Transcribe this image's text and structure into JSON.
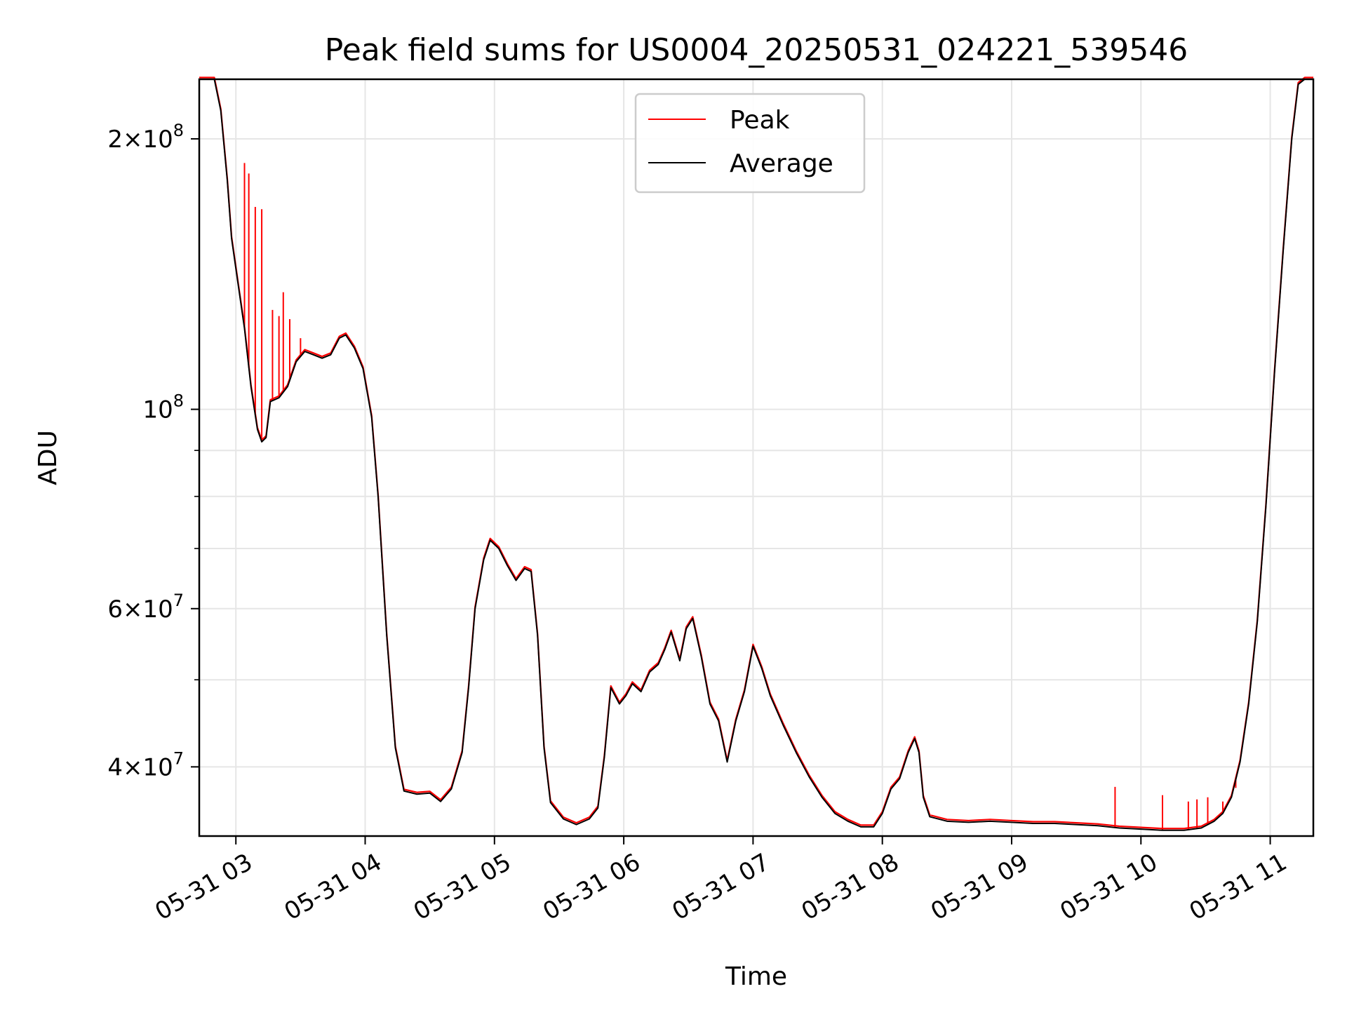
{
  "chart_data": {
    "type": "line",
    "title": "Peak field sums for US0004_20250531_024221_539546",
    "xlabel": "Time",
    "ylabel": "ADU",
    "y_scale": "log",
    "x_range": [
      "2025-05-31 02:43",
      "2025-05-31 11:20"
    ],
    "ylim": [
      33500000,
      233000000
    ],
    "grid": true,
    "legend_position": "upper center",
    "x_ticks": [
      {
        "t": "2025-05-31 03:00",
        "label": "05-31 03"
      },
      {
        "t": "2025-05-31 04:00",
        "label": "05-31 04"
      },
      {
        "t": "2025-05-31 05:00",
        "label": "05-31 05"
      },
      {
        "t": "2025-05-31 06:00",
        "label": "05-31 06"
      },
      {
        "t": "2025-05-31 07:00",
        "label": "05-31 07"
      },
      {
        "t": "2025-05-31 08:00",
        "label": "05-31 08"
      },
      {
        "t": "2025-05-31 09:00",
        "label": "05-31 09"
      },
      {
        "t": "2025-05-31 10:00",
        "label": "05-31 10"
      },
      {
        "t": "2025-05-31 11:00",
        "label": "05-31 11"
      }
    ],
    "y_major_ticks": [
      {
        "value": 40000000,
        "mant": "4",
        "exp": "7"
      },
      {
        "value": 60000000,
        "mant": "6",
        "exp": "7"
      },
      {
        "value": 100000000,
        "mant": "",
        "exp": "8"
      },
      {
        "value": 200000000,
        "mant": "2",
        "exp": "8"
      }
    ],
    "y_minor_ticks": [
      50000000,
      70000000,
      80000000,
      90000000
    ],
    "series": [
      {
        "name": "Peak",
        "color": "#ff0000",
        "spikes": [
          {
            "t": "2025-05-31 03:04",
            "y": 188000000
          },
          {
            "t": "2025-05-31 03:06",
            "y": 183000000
          },
          {
            "t": "2025-05-31 03:09",
            "y": 168000000
          },
          {
            "t": "2025-05-31 03:12",
            "y": 167000000
          },
          {
            "t": "2025-05-31 03:17",
            "y": 129000000
          },
          {
            "t": "2025-05-31 03:20",
            "y": 127000000
          },
          {
            "t": "2025-05-31 03:22",
            "y": 135000000
          },
          {
            "t": "2025-05-31 03:25",
            "y": 126000000
          },
          {
            "t": "2025-05-31 03:30",
            "y": 120000000
          },
          {
            "t": "2025-05-31 09:48",
            "y": 38000000
          },
          {
            "t": "2025-05-31 10:10",
            "y": 37200000
          },
          {
            "t": "2025-05-31 10:22",
            "y": 36600000
          },
          {
            "t": "2025-05-31 10:26",
            "y": 36800000
          },
          {
            "t": "2025-05-31 10:31",
            "y": 37000000
          },
          {
            "t": "2025-05-31 10:38",
            "y": 36600000
          },
          {
            "t": "2025-05-31 10:44",
            "y": 37900000
          }
        ]
      },
      {
        "name": "Average",
        "color": "#000000",
        "points": [
          [
            "2025-05-31 02:43",
            233000000
          ],
          [
            "2025-05-31 02:50",
            233000000
          ],
          [
            "2025-05-31 02:53",
            215000000
          ],
          [
            "2025-05-31 02:56",
            180000000
          ],
          [
            "2025-05-31 02:58",
            155000000
          ],
          [
            "2025-05-31 03:01",
            138000000
          ],
          [
            "2025-05-31 03:04",
            123000000
          ],
          [
            "2025-05-31 03:07",
            106000000
          ],
          [
            "2025-05-31 03:10",
            95000000
          ],
          [
            "2025-05-31 03:12",
            92000000
          ],
          [
            "2025-05-31 03:14",
            93000000
          ],
          [
            "2025-05-31 03:16",
            102000000
          ],
          [
            "2025-05-31 03:20",
            103000000
          ],
          [
            "2025-05-31 03:24",
            106000000
          ],
          [
            "2025-05-31 03:28",
            113000000
          ],
          [
            "2025-05-31 03:32",
            116000000
          ],
          [
            "2025-05-31 03:36",
            115000000
          ],
          [
            "2025-05-31 03:40",
            114000000
          ],
          [
            "2025-05-31 03:44",
            115000000
          ],
          [
            "2025-05-31 03:48",
            120000000
          ],
          [
            "2025-05-31 03:51",
            121000000
          ],
          [
            "2025-05-31 03:55",
            117000000
          ],
          [
            "2025-05-31 03:59",
            111000000
          ],
          [
            "2025-05-31 04:03",
            98000000
          ],
          [
            "2025-05-31 04:06",
            80000000
          ],
          [
            "2025-05-31 04:10",
            56000000
          ],
          [
            "2025-05-31 04:14",
            42000000
          ],
          [
            "2025-05-31 04:18",
            37600000
          ],
          [
            "2025-05-31 04:24",
            37300000
          ],
          [
            "2025-05-31 04:30",
            37400000
          ],
          [
            "2025-05-31 04:35",
            36600000
          ],
          [
            "2025-05-31 04:40",
            37800000
          ],
          [
            "2025-05-31 04:45",
            41500000
          ],
          [
            "2025-05-31 04:48",
            49000000
          ],
          [
            "2025-05-31 04:51",
            60000000
          ],
          [
            "2025-05-31 04:55",
            68000000
          ],
          [
            "2025-05-31 04:58",
            71500000
          ],
          [
            "2025-05-31 05:02",
            70000000
          ],
          [
            "2025-05-31 05:06",
            67000000
          ],
          [
            "2025-05-31 05:10",
            64500000
          ],
          [
            "2025-05-31 05:14",
            66500000
          ],
          [
            "2025-05-31 05:17",
            66000000
          ],
          [
            "2025-05-31 05:20",
            56000000
          ],
          [
            "2025-05-31 05:23",
            42000000
          ],
          [
            "2025-05-31 05:26",
            36500000
          ],
          [
            "2025-05-31 05:32",
            35000000
          ],
          [
            "2025-05-31 05:38",
            34500000
          ],
          [
            "2025-05-31 05:44",
            35000000
          ],
          [
            "2025-05-31 05:48",
            36000000
          ],
          [
            "2025-05-31 05:51",
            41000000
          ],
          [
            "2025-05-31 05:54",
            49000000
          ],
          [
            "2025-05-31 05:58",
            47000000
          ],
          [
            "2025-05-31 06:01",
            48000000
          ],
          [
            "2025-05-31 06:04",
            49500000
          ],
          [
            "2025-05-31 06:08",
            48500000
          ],
          [
            "2025-05-31 06:12",
            51000000
          ],
          [
            "2025-05-31 06:16",
            52000000
          ],
          [
            "2025-05-31 06:19",
            54000000
          ],
          [
            "2025-05-31 06:22",
            56500000
          ],
          [
            "2025-05-31 06:26",
            52500000
          ],
          [
            "2025-05-31 06:29",
            57000000
          ],
          [
            "2025-05-31 06:32",
            58500000
          ],
          [
            "2025-05-31 06:36",
            53000000
          ],
          [
            "2025-05-31 06:40",
            47000000
          ],
          [
            "2025-05-31 06:44",
            45000000
          ],
          [
            "2025-05-31 06:48",
            40500000
          ],
          [
            "2025-05-31 06:52",
            45000000
          ],
          [
            "2025-05-31 06:56",
            48500000
          ],
          [
            "2025-05-31 07:00",
            54500000
          ],
          [
            "2025-05-31 07:04",
            51500000
          ],
          [
            "2025-05-31 07:08",
            48000000
          ],
          [
            "2025-05-31 07:14",
            44500000
          ],
          [
            "2025-05-31 07:20",
            41500000
          ],
          [
            "2025-05-31 07:26",
            39000000
          ],
          [
            "2025-05-31 07:32",
            37000000
          ],
          [
            "2025-05-31 07:38",
            35500000
          ],
          [
            "2025-05-31 07:44",
            34800000
          ],
          [
            "2025-05-31 07:50",
            34300000
          ],
          [
            "2025-05-31 07:56",
            34300000
          ],
          [
            "2025-05-31 08:00",
            35500000
          ],
          [
            "2025-05-31 08:04",
            37800000
          ],
          [
            "2025-05-31 08:08",
            38800000
          ],
          [
            "2025-05-31 08:12",
            41500000
          ],
          [
            "2025-05-31 08:15",
            43000000
          ],
          [
            "2025-05-31 08:17",
            41500000
          ],
          [
            "2025-05-31 08:19",
            37000000
          ],
          [
            "2025-05-31 08:22",
            35200000
          ],
          [
            "2025-05-31 08:30",
            34800000
          ],
          [
            "2025-05-31 08:40",
            34700000
          ],
          [
            "2025-05-31 08:50",
            34800000
          ],
          [
            "2025-05-31 09:00",
            34700000
          ],
          [
            "2025-05-31 09:10",
            34600000
          ],
          [
            "2025-05-31 09:20",
            34600000
          ],
          [
            "2025-05-31 09:30",
            34500000
          ],
          [
            "2025-05-31 09:40",
            34400000
          ],
          [
            "2025-05-31 09:50",
            34200000
          ],
          [
            "2025-05-31 10:00",
            34100000
          ],
          [
            "2025-05-31 10:10",
            34000000
          ],
          [
            "2025-05-31 10:20",
            34000000
          ],
          [
            "2025-05-31 10:28",
            34200000
          ],
          [
            "2025-05-31 10:34",
            34800000
          ],
          [
            "2025-05-31 10:38",
            35500000
          ],
          [
            "2025-05-31 10:42",
            37000000
          ],
          [
            "2025-05-31 10:46",
            40500000
          ],
          [
            "2025-05-31 10:50",
            47000000
          ],
          [
            "2025-05-31 10:54",
            58000000
          ],
          [
            "2025-05-31 10:58",
            78000000
          ],
          [
            "2025-05-31 11:02",
            110000000
          ],
          [
            "2025-05-31 11:06",
            150000000
          ],
          [
            "2025-05-31 11:10",
            200000000
          ],
          [
            "2025-05-31 11:13",
            230000000
          ],
          [
            "2025-05-31 11:16",
            233000000
          ],
          [
            "2025-05-31 11:20",
            233000000
          ]
        ]
      }
    ]
  }
}
